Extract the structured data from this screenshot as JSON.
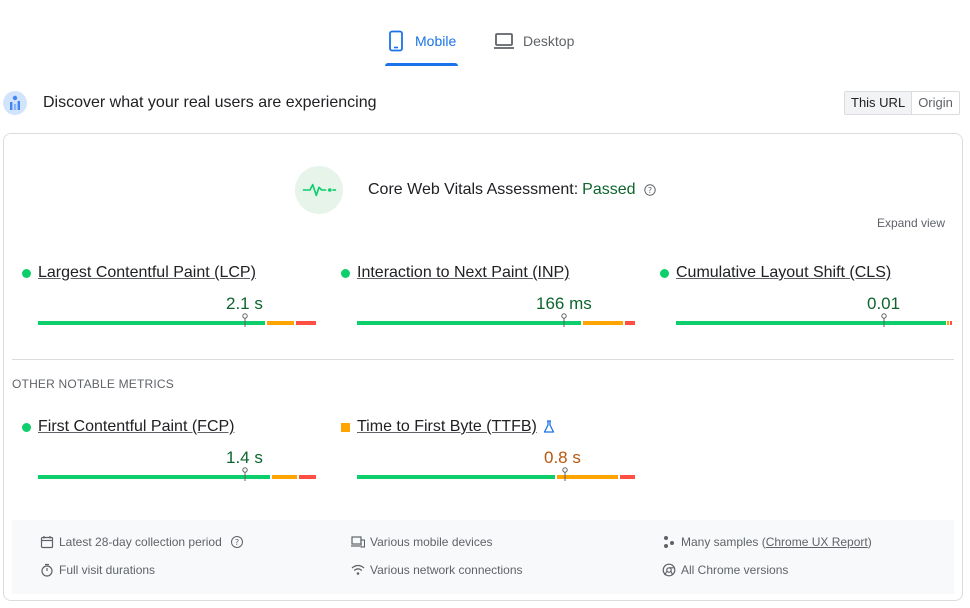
{
  "tabs": [
    {
      "label": "Mobile",
      "icon": "phone-icon",
      "active": true
    },
    {
      "label": "Desktop",
      "icon": "laptop-icon",
      "active": false
    }
  ],
  "discover": {
    "title": "Discover what your real users are experiencing",
    "scope_options": [
      "This URL",
      "Origin"
    ],
    "selected_scope": "This URL"
  },
  "assessment": {
    "label": "Core Web Vitals Assessment:",
    "status": "Passed",
    "expand_label": "Expand view"
  },
  "core_metrics": [
    {
      "name": "Largest Contentful Paint (LCP)",
      "value": "2.1 s",
      "rating": "good"
    },
    {
      "name": "Interaction to Next Paint (INP)",
      "value": "166 ms",
      "rating": "good"
    },
    {
      "name": "Cumulative Layout Shift (CLS)",
      "value": "0.01",
      "rating": "good"
    }
  ],
  "other_heading": "OTHER NOTABLE METRICS",
  "other_metrics": [
    {
      "name": "First Contentful Paint (FCP)",
      "value": "1.4 s",
      "rating": "good"
    },
    {
      "name": "Time to First Byte (TTFB)",
      "value": "0.8 s",
      "rating": "needs-improvement",
      "experimental": true
    }
  ],
  "footer": {
    "collection_period": "Latest 28-day collection period",
    "visit_durations": "Full visit durations",
    "devices": "Various mobile devices",
    "network": "Various network connections",
    "samples_prefix": "Many samples (",
    "samples_link": "Chrome UX Report",
    "samples_suffix": ")",
    "versions": "All Chrome versions"
  },
  "colors": {
    "accent": "#1a73e8",
    "good": "#0cce6b",
    "needs_improvement": "#ffa400",
    "poor": "#ff4e42",
    "passed_text": "#0d652d"
  }
}
